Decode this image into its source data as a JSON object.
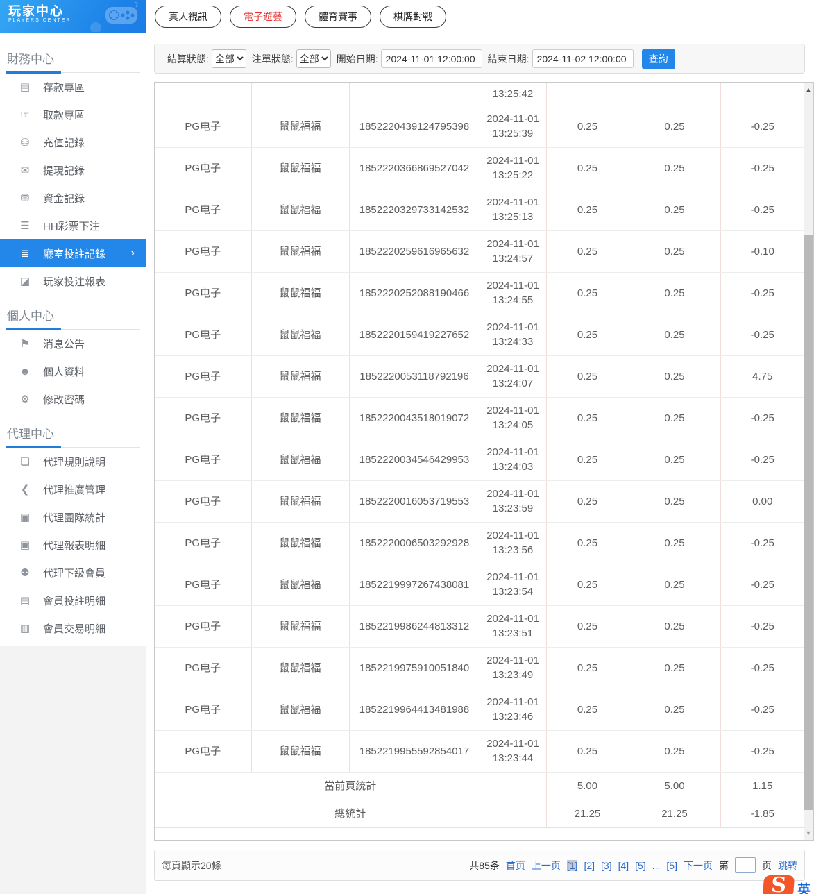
{
  "colors": {
    "accent_blue": "#2287e8",
    "tab_active_red": "#e8312f",
    "link_blue": "#2e6cc8",
    "selected_nav_bg": "#2287e8"
  },
  "logo": {
    "title": "玩家中心",
    "subtitle": "PLAYERS CENTER",
    "icon": "gamepad-icon"
  },
  "top_tabs": [
    {
      "label": "真人視訊",
      "active": false
    },
    {
      "label": "電子遊藝",
      "active": true
    },
    {
      "label": "體育賽事",
      "active": false
    },
    {
      "label": "棋牌對戰",
      "active": false
    }
  ],
  "filters": {
    "settle_status_label": "結算狀態:",
    "settle_status_value": "全部",
    "order_status_label": "注單狀態:",
    "order_status_value": "全部",
    "start_date_label": "開始日期:",
    "start_date_value": "2024-11-01 12:00:00",
    "end_date_label": "結束日期:",
    "end_date_value": "2024-11-02 12:00:00",
    "search_button": "查詢"
  },
  "sidebar": {
    "sections": [
      {
        "title": "財務中心",
        "items": [
          {
            "label": "存款專區",
            "icon": "deposit-card-icon",
            "glyph": "▤"
          },
          {
            "label": "取款專區",
            "icon": "withdraw-hand-icon",
            "glyph": "☞"
          },
          {
            "label": "充值記錄",
            "icon": "recharge-moneybag-icon",
            "glyph": "⛁"
          },
          {
            "label": "提現記錄",
            "icon": "withdrawal-envelope-icon",
            "glyph": "✉"
          },
          {
            "label": "資金記錄",
            "icon": "funds-moneybag-icon",
            "glyph": "⛃"
          },
          {
            "label": "HH彩票下注",
            "icon": "lottery-list-icon",
            "glyph": "☰"
          },
          {
            "label": "廳室投註記錄",
            "icon": "room-bets-list-icon",
            "glyph": "≣",
            "selected": true,
            "chevron": "›"
          },
          {
            "label": "玩家投注報表",
            "icon": "report-chart-icon",
            "glyph": "◪"
          }
        ]
      },
      {
        "title": "個人中心",
        "items": [
          {
            "label": "消息公告",
            "icon": "announcement-bell-icon",
            "glyph": "⚑"
          },
          {
            "label": "個人資料",
            "icon": "profile-person-icon",
            "glyph": "☻"
          },
          {
            "label": "修改密碼",
            "icon": "password-gear-icon",
            "glyph": "⚙"
          }
        ]
      },
      {
        "title": "代理中心",
        "items": [
          {
            "label": "代理規則說明",
            "icon": "agent-rules-document-icon",
            "glyph": "❏"
          },
          {
            "label": "代理推廣管理",
            "icon": "agent-promotion-share-icon",
            "glyph": "❮"
          },
          {
            "label": "代理團隊統計",
            "icon": "agent-team-card-icon",
            "glyph": "▣"
          },
          {
            "label": "代理報表明細",
            "icon": "agent-report-card-icon",
            "glyph": "▣"
          },
          {
            "label": "代理下級會員",
            "icon": "agent-members-people-icon",
            "glyph": "⚉"
          },
          {
            "label": "會員投註明細",
            "icon": "member-bets-clipboard-icon",
            "glyph": "▤"
          },
          {
            "label": "會員交易明細",
            "icon": "member-transactions-clipboard-icon",
            "glyph": "▥"
          }
        ]
      }
    ]
  },
  "table": {
    "partial_row": {
      "time": "13:25:42"
    },
    "rows": [
      {
        "platform": "PG电子",
        "game": "鼠鼠福福",
        "order_id": "1852220439124795398",
        "datetime": "2024-11-01 13:25:39",
        "bet": "0.25",
        "valid_bet": "0.25",
        "profit": "-0.25"
      },
      {
        "platform": "PG电子",
        "game": "鼠鼠福福",
        "order_id": "1852220366869527042",
        "datetime": "2024-11-01 13:25:22",
        "bet": "0.25",
        "valid_bet": "0.25",
        "profit": "-0.25"
      },
      {
        "platform": "PG电子",
        "game": "鼠鼠福福",
        "order_id": "1852220329733142532",
        "datetime": "2024-11-01 13:25:13",
        "bet": "0.25",
        "valid_bet": "0.25",
        "profit": "-0.25"
      },
      {
        "platform": "PG电子",
        "game": "鼠鼠福福",
        "order_id": "1852220259616965632",
        "datetime": "2024-11-01 13:24:57",
        "bet": "0.25",
        "valid_bet": "0.25",
        "profit": "-0.10"
      },
      {
        "platform": "PG电子",
        "game": "鼠鼠福福",
        "order_id": "1852220252088190466",
        "datetime": "2024-11-01 13:24:55",
        "bet": "0.25",
        "valid_bet": "0.25",
        "profit": "-0.25"
      },
      {
        "platform": "PG电子",
        "game": "鼠鼠福福",
        "order_id": "1852220159419227652",
        "datetime": "2024-11-01 13:24:33",
        "bet": "0.25",
        "valid_bet": "0.25",
        "profit": "-0.25"
      },
      {
        "platform": "PG电子",
        "game": "鼠鼠福福",
        "order_id": "1852220053118792196",
        "datetime": "2024-11-01 13:24:07",
        "bet": "0.25",
        "valid_bet": "0.25",
        "profit": "4.75"
      },
      {
        "platform": "PG电子",
        "game": "鼠鼠福福",
        "order_id": "1852220043518019072",
        "datetime": "2024-11-01 13:24:05",
        "bet": "0.25",
        "valid_bet": "0.25",
        "profit": "-0.25"
      },
      {
        "platform": "PG电子",
        "game": "鼠鼠福福",
        "order_id": "1852220034546429953",
        "datetime": "2024-11-01 13:24:03",
        "bet": "0.25",
        "valid_bet": "0.25",
        "profit": "-0.25"
      },
      {
        "platform": "PG电子",
        "game": "鼠鼠福福",
        "order_id": "1852220016053719553",
        "datetime": "2024-11-01 13:23:59",
        "bet": "0.25",
        "valid_bet": "0.25",
        "profit": "0.00"
      },
      {
        "platform": "PG电子",
        "game": "鼠鼠福福",
        "order_id": "1852220006503292928",
        "datetime": "2024-11-01 13:23:56",
        "bet": "0.25",
        "valid_bet": "0.25",
        "profit": "-0.25"
      },
      {
        "platform": "PG电子",
        "game": "鼠鼠福福",
        "order_id": "1852219997267438081",
        "datetime": "2024-11-01 13:23:54",
        "bet": "0.25",
        "valid_bet": "0.25",
        "profit": "-0.25"
      },
      {
        "platform": "PG电子",
        "game": "鼠鼠福福",
        "order_id": "1852219986244813312",
        "datetime": "2024-11-01 13:23:51",
        "bet": "0.25",
        "valid_bet": "0.25",
        "profit": "-0.25"
      },
      {
        "platform": "PG电子",
        "game": "鼠鼠福福",
        "order_id": "1852219975910051840",
        "datetime": "2024-11-01 13:23:49",
        "bet": "0.25",
        "valid_bet": "0.25",
        "profit": "-0.25"
      },
      {
        "platform": "PG电子",
        "game": "鼠鼠福福",
        "order_id": "1852219964413481988",
        "datetime": "2024-11-01 13:23:46",
        "bet": "0.25",
        "valid_bet": "0.25",
        "profit": "-0.25"
      },
      {
        "platform": "PG电子",
        "game": "鼠鼠福福",
        "order_id": "1852219955592854017",
        "datetime": "2024-11-01 13:23:44",
        "bet": "0.25",
        "valid_bet": "0.25",
        "profit": "-0.25"
      }
    ],
    "summary": [
      {
        "label": "當前頁統計",
        "bet": "5.00",
        "valid_bet": "5.00",
        "profit": "1.15"
      },
      {
        "label": "總統計",
        "bet": "21.25",
        "valid_bet": "21.25",
        "profit": "-1.85"
      }
    ]
  },
  "pagination": {
    "page_size_text": "每頁顯示20條",
    "total_text": "共85条",
    "first_label": "首页",
    "prev_label": "上一页",
    "pages": [
      {
        "label": "[1]",
        "current": true
      },
      {
        "label": "[2]",
        "current": false
      },
      {
        "label": "[3]",
        "current": false
      },
      {
        "label": "[4]",
        "current": false
      },
      {
        "label": "[5]",
        "current": false
      },
      {
        "label": "...",
        "current": false
      },
      {
        "label": "[5]",
        "current": false
      }
    ],
    "next_label": "下一页",
    "jump_prefix": "第",
    "jump_suffix": "页",
    "jump_button": "跳转",
    "jump_value": ""
  },
  "ime": {
    "letter": "S",
    "lang": "英"
  }
}
